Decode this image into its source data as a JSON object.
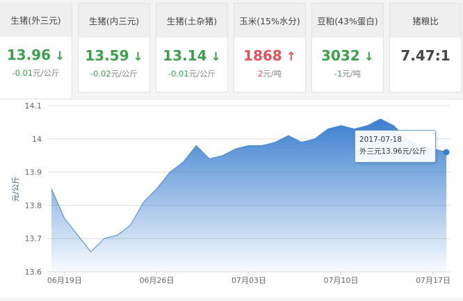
{
  "cards": [
    {
      "title": "生猪(外三元)",
      "value": "13.96",
      "trend": "down",
      "change": "-0.01",
      "unit": "元/公斤"
    },
    {
      "title": "生猪(内三元)",
      "value": "13.59",
      "trend": "down",
      "change": "-0.02",
      "unit": "元/公斤"
    },
    {
      "title": "生猪(土杂猪)",
      "value": "13.14",
      "trend": "down",
      "change": "-0.01",
      "unit": "元/公斤"
    },
    {
      "title": "玉米(15%水分)",
      "value": "1868",
      "trend": "up",
      "change": "2",
      "unit": "元/吨"
    },
    {
      "title": "豆粕(43%蛋白)",
      "value": "3032",
      "trend": "down",
      "change": "-1",
      "unit": "元/吨"
    },
    {
      "title": "猪粮比",
      "value": "7.47:1",
      "trend": "none",
      "change": "",
      "unit": ""
    }
  ],
  "colors": {
    "down": "#3aa14a",
    "up": "#e5505a",
    "series": "#3a7fd0"
  },
  "tooltip": {
    "date": "2017-07-18",
    "text": "外三元13.96元/公斤"
  },
  "chart_data": {
    "type": "area",
    "ylabel": "元/公斤",
    "ylim": [
      13.6,
      14.1
    ],
    "yticks": [
      "14.1",
      "14",
      "13.9",
      "13.8",
      "13.7",
      "13.6"
    ],
    "xtick_labels": [
      "06月19日",
      "06月26日",
      "07月03日",
      "07月10日",
      "07月17日"
    ],
    "x_start": "2017-06-18",
    "x_end": "2017-07-18",
    "grid": true,
    "values": [
      13.85,
      13.76,
      13.71,
      13.66,
      13.7,
      13.71,
      13.74,
      13.81,
      13.85,
      13.9,
      13.93,
      13.98,
      13.94,
      13.95,
      13.97,
      13.98,
      13.98,
      13.99,
      14.01,
      13.99,
      14.0,
      14.03,
      14.04,
      14.03,
      14.04,
      14.06,
      14.04,
      14.0,
      13.98,
      13.97,
      13.96
    ]
  }
}
